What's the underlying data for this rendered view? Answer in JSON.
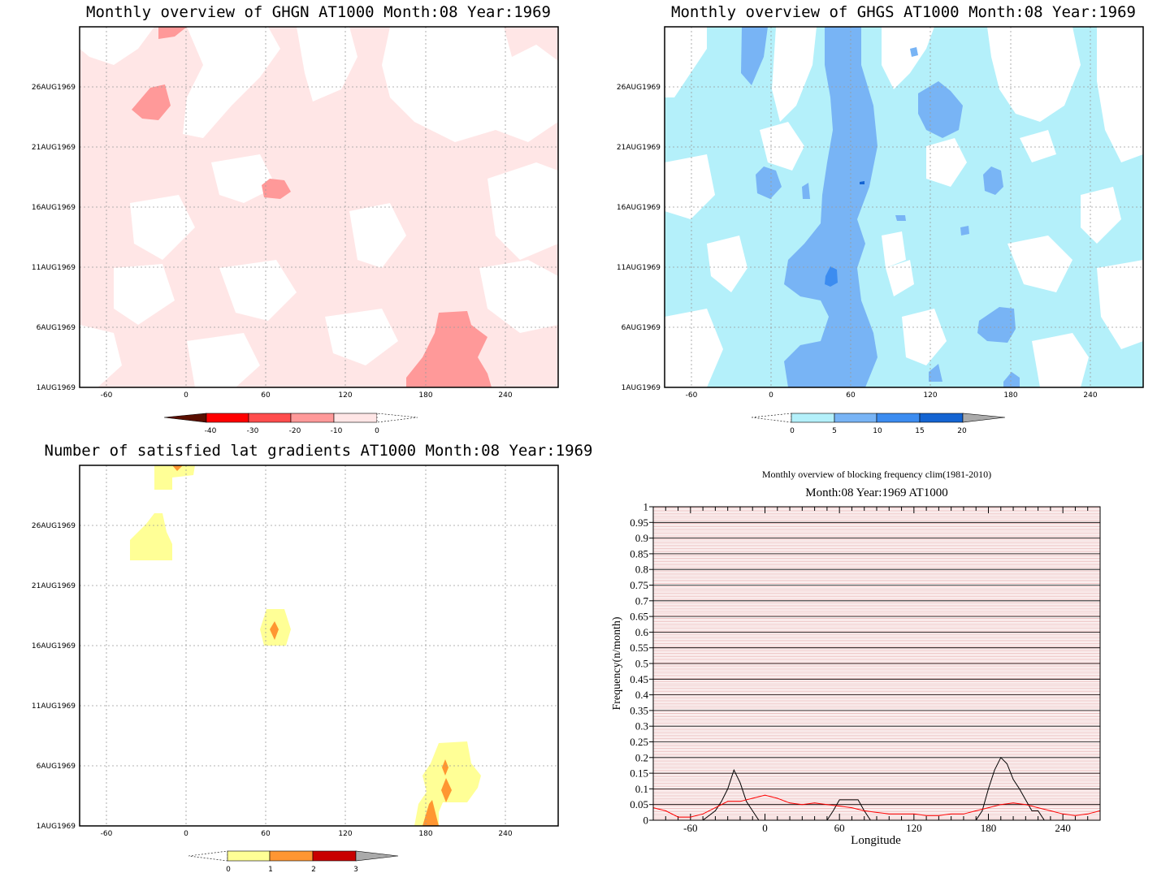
{
  "chart_data": [
    {
      "type": "heatmap",
      "title": "Monthly overview of GHGN AT1000 Month:08 Year:1969",
      "x_ticks": [
        "-60",
        "0",
        "60",
        "120",
        "180",
        "240"
      ],
      "y_ticks": [
        "1AUG1969",
        "6AUG1969",
        "11AUG1969",
        "16AUG1969",
        "21AUG1969",
        "26AUG1969"
      ],
      "xlim": [
        -80,
        280
      ],
      "colorbar": {
        "labels": [
          "-40",
          "-30",
          "-20",
          "-10",
          "0"
        ],
        "colors": [
          "#5a0f00",
          "#ff0000",
          "#ff4d4d",
          "#ff9999",
          "#ffe6e6"
        ]
      },
      "features": [
        {
          "value_range": "-10..0",
          "description": "light pink field covering most of domain"
        },
        {
          "value_range": "-20..-10",
          "lon": -25,
          "date": "25AUG1969"
        },
        {
          "value_range": "-20..-10",
          "lon": 68,
          "date": "18AUG1969"
        },
        {
          "value_range": "-20..-10",
          "lon": 200,
          "date": "1AUG1969-6AUG1969"
        }
      ]
    },
    {
      "type": "heatmap",
      "title": "Monthly overview of GHGS AT1000 Month:08 Year:1969",
      "x_ticks": [
        "-60",
        "0",
        "60",
        "120",
        "180",
        "240"
      ],
      "y_ticks": [
        "1AUG1969",
        "6AUG1969",
        "11AUG1969",
        "16AUG1969",
        "21AUG1969",
        "26AUG1969"
      ],
      "xlim": [
        -80,
        280
      ],
      "colorbar": {
        "labels": [
          "0",
          "5",
          "10",
          "15",
          "20"
        ],
        "colors": [
          "#b4f0fa",
          "#78b4f5",
          "#3c8cf0",
          "#1464d2",
          "#aaaaaa"
        ]
      },
      "features": [
        {
          "value_range": "0..5",
          "description": "light cyan field covering most of domain"
        },
        {
          "value_range": "5..10",
          "lon": 50,
          "date": "1AUG1969-31AUG1969",
          "description": "long band near 40-70E"
        },
        {
          "value_range": "10..15",
          "lon": 48,
          "date": "10AUG1969"
        }
      ]
    },
    {
      "type": "heatmap",
      "title": "Number of satisfied lat gradients AT1000 Month:08 Year:1969",
      "x_ticks": [
        "-60",
        "0",
        "60",
        "120",
        "180",
        "240"
      ],
      "y_ticks": [
        "1AUG1969",
        "6AUG1969",
        "11AUG1969",
        "16AUG1969",
        "21AUG1969",
        "26AUG1969"
      ],
      "xlim": [
        -80,
        280
      ],
      "colorbar": {
        "labels": [
          "0",
          "1",
          "2",
          "3"
        ],
        "colors": [
          "#ffff96",
          "#ff9632",
          "#c80000",
          "#aaaaaa"
        ]
      },
      "features": [
        {
          "value_range": "0..1",
          "lon": -20,
          "date": "30AUG1969"
        },
        {
          "value_range": "0..1",
          "lon": -25,
          "date": "25AUG1969"
        },
        {
          "value_range": "1..2",
          "lon": 67,
          "date": "17AUG1969"
        },
        {
          "value_range": "1..2",
          "lon": 195,
          "date": "1AUG1969-6AUG1969"
        }
      ]
    },
    {
      "type": "line",
      "title": "Monthly overview of blocking frequency clim(1981-2010)",
      "subtitle": "Month:08 Year:1969  AT1000",
      "xlabel": "Longitude",
      "ylabel": "Frequency(n/month)",
      "xlim": [
        -90,
        270
      ],
      "ylim": [
        0,
        1
      ],
      "x_ticks": [
        "-60",
        "0",
        "60",
        "120",
        "180",
        "240"
      ],
      "y_ticks": [
        "0",
        "0.05",
        "0.1",
        "0.15",
        "0.2",
        "0.25",
        "0.3",
        "0.35",
        "0.4",
        "0.45",
        "0.5",
        "0.55",
        "0.6",
        "0.65",
        "0.7",
        "0.75",
        "0.8",
        "0.85",
        "0.9",
        "0.95",
        "1"
      ],
      "series": [
        {
          "color": "#000000",
          "x": [
            -90,
            -50,
            -40,
            -35,
            -30,
            -25,
            -20,
            -15,
            -10,
            -5,
            0,
            50,
            55,
            60,
            75,
            80,
            85,
            170,
            175,
            180,
            185,
            190,
            195,
            200,
            205,
            210,
            215,
            220,
            225,
            270
          ],
          "y": [
            0,
            0,
            0.03,
            0.06,
            0.1,
            0.16,
            0.12,
            0.06,
            0.03,
            0.0,
            0,
            0,
            0.03,
            0.065,
            0.065,
            0.03,
            0,
            0,
            0.03,
            0.1,
            0.16,
            0.2,
            0.18,
            0.13,
            0.1,
            0.065,
            0.03,
            0.03,
            0,
            0
          ]
        },
        {
          "color": "#ff0000",
          "x": [
            -90,
            -80,
            -70,
            -60,
            -50,
            -40,
            -30,
            -20,
            -10,
            0,
            10,
            20,
            30,
            40,
            50,
            60,
            70,
            80,
            90,
            100,
            110,
            120,
            130,
            140,
            150,
            160,
            170,
            180,
            190,
            200,
            210,
            220,
            230,
            240,
            250,
            260,
            270
          ],
          "y": [
            0.04,
            0.03,
            0.01,
            0.01,
            0.02,
            0.04,
            0.06,
            0.06,
            0.07,
            0.08,
            0.07,
            0.055,
            0.05,
            0.055,
            0.05,
            0.045,
            0.04,
            0.03,
            0.025,
            0.02,
            0.02,
            0.02,
            0.015,
            0.015,
            0.02,
            0.02,
            0.03,
            0.04,
            0.05,
            0.055,
            0.05,
            0.04,
            0.03,
            0.02,
            0.015,
            0.02,
            0.03
          ]
        }
      ]
    }
  ]
}
